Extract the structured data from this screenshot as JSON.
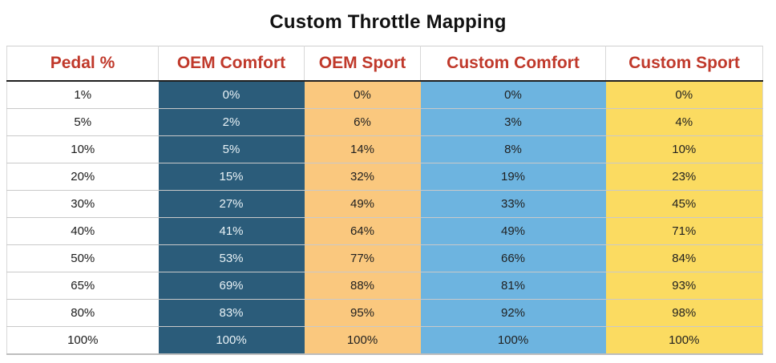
{
  "title": "Custom Throttle Mapping",
  "colors": {
    "header_text": "#c0392b",
    "title_text": "#111111",
    "oem_comfort_bg": "#2b5c7a",
    "oem_sport_bg": "#fac87e",
    "custom_comfort_bg": "#6db4e0",
    "custom_sport_bg": "#fbdb61"
  },
  "table": {
    "columns": [
      {
        "key": "pedal",
        "label": "Pedal %",
        "bg": "#ffffff",
        "text": "#1a1a1a"
      },
      {
        "key": "oem-comfort",
        "label": "OEM Comfort",
        "bg": "#2b5c7a",
        "text": "#e9f2f6"
      },
      {
        "key": "oem-sport",
        "label": "OEM Sport",
        "bg": "#fac87e",
        "text": "#1f1f1f"
      },
      {
        "key": "custom-comfort",
        "label": "Custom Comfort",
        "bg": "#6db4e0",
        "text": "#1f1f1f"
      },
      {
        "key": "custom-sport",
        "label": "Custom Sport",
        "bg": "#fbdb61",
        "text": "#1f1f1f"
      }
    ],
    "rows": [
      [
        "1%",
        "0%",
        "0%",
        "0%",
        "0%"
      ],
      [
        "5%",
        "2%",
        "6%",
        "3%",
        "4%"
      ],
      [
        "10%",
        "5%",
        "14%",
        "8%",
        "10%"
      ],
      [
        "20%",
        "15%",
        "32%",
        "19%",
        "23%"
      ],
      [
        "30%",
        "27%",
        "49%",
        "33%",
        "45%"
      ],
      [
        "40%",
        "41%",
        "64%",
        "49%",
        "71%"
      ],
      [
        "50%",
        "53%",
        "77%",
        "66%",
        "84%"
      ],
      [
        "65%",
        "69%",
        "88%",
        "81%",
        "93%"
      ],
      [
        "80%",
        "83%",
        "95%",
        "92%",
        "98%"
      ],
      [
        "100%",
        "100%",
        "100%",
        "100%",
        "100%"
      ]
    ]
  },
  "chart_data": {
    "type": "table",
    "title": "Custom Throttle Mapping",
    "columns": [
      "Pedal %",
      "OEM Comfort",
      "OEM Sport",
      "Custom Comfort",
      "Custom Sport"
    ],
    "x_label": "Pedal %",
    "x": [
      1,
      5,
      10,
      20,
      30,
      40,
      50,
      65,
      80,
      100
    ],
    "series": [
      {
        "name": "OEM Comfort",
        "values": [
          0,
          2,
          5,
          15,
          27,
          41,
          53,
          69,
          83,
          100
        ]
      },
      {
        "name": "OEM Sport",
        "values": [
          0,
          6,
          14,
          32,
          49,
          64,
          77,
          88,
          95,
          100
        ]
      },
      {
        "name": "Custom Comfort",
        "values": [
          0,
          3,
          8,
          19,
          33,
          49,
          66,
          81,
          92,
          100
        ]
      },
      {
        "name": "Custom Sport",
        "values": [
          0,
          4,
          10,
          23,
          45,
          71,
          84,
          93,
          98,
          100
        ]
      }
    ],
    "units": "percent"
  }
}
